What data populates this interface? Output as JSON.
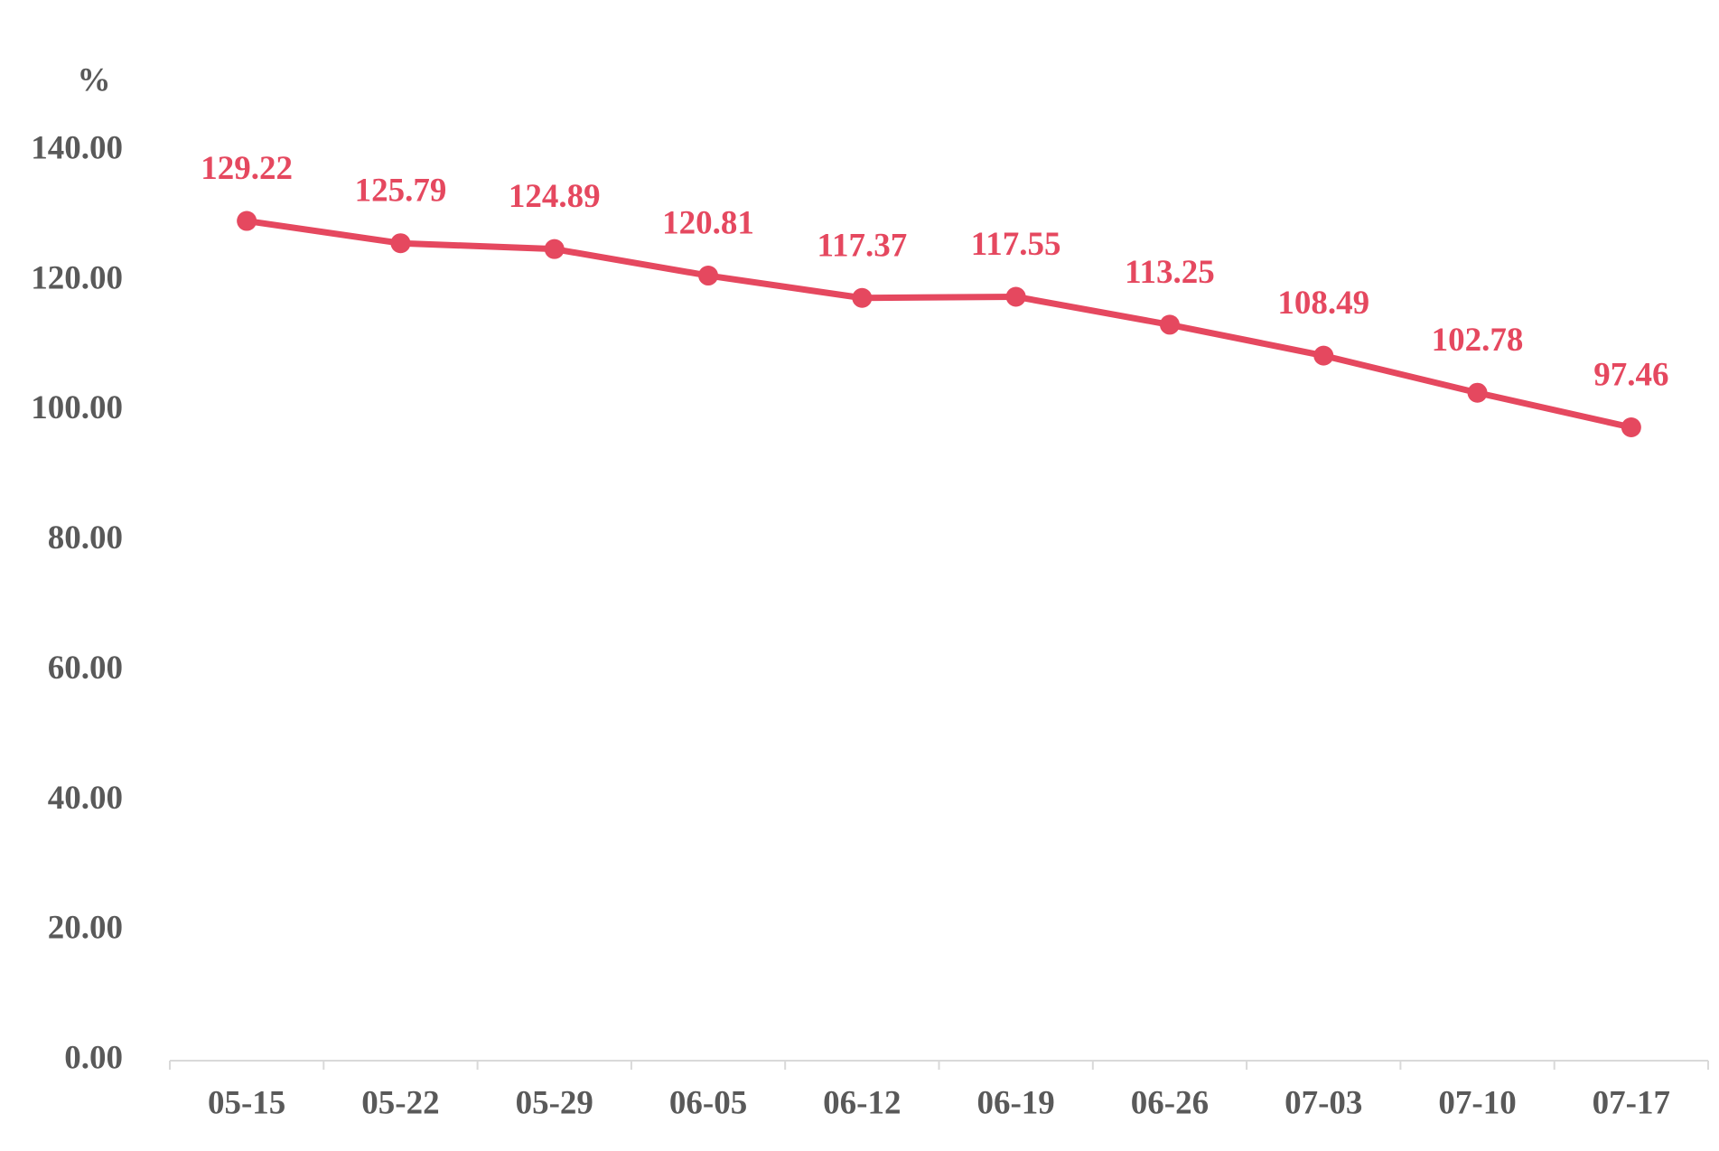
{
  "chart_data": {
    "type": "line",
    "y_label": "%",
    "categories": [
      "05-15",
      "05-22",
      "05-29",
      "06-05",
      "06-12",
      "06-19",
      "06-26",
      "07-03",
      "07-10",
      "07-17"
    ],
    "values": [
      129.22,
      125.79,
      124.89,
      120.81,
      117.37,
      117.55,
      113.25,
      108.49,
      102.78,
      97.46
    ],
    "color": "#e5485f",
    "ylim": [
      0,
      140
    ],
    "yticks": [
      {
        "value": 0,
        "label": "0.00"
      },
      {
        "value": 20,
        "label": "20.00"
      },
      {
        "value": 40,
        "label": "40.00"
      },
      {
        "value": 60,
        "label": "60.00"
      },
      {
        "value": 80,
        "label": "80.00"
      },
      {
        "value": 100,
        "label": "100.00"
      },
      {
        "value": 120,
        "label": "120.00"
      },
      {
        "value": 140,
        "label": "140.00"
      }
    ],
    "grid": false
  }
}
